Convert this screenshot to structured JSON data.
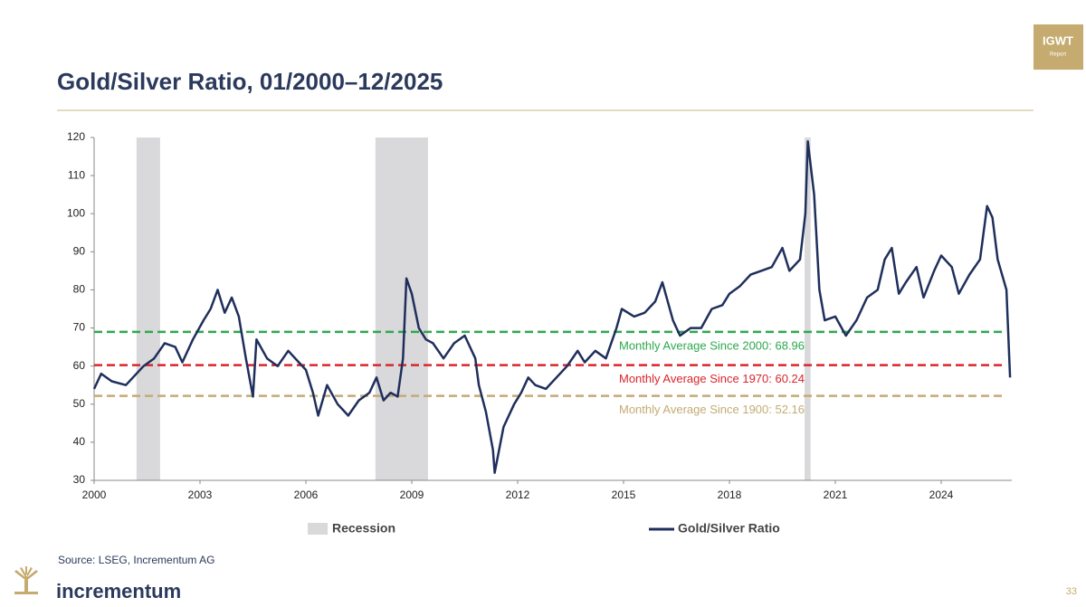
{
  "header": {
    "badge_title": "IGWT",
    "badge_subtitle": "Report"
  },
  "chart_data": {
    "type": "line",
    "title": "Gold/Silver Ratio, 01/2000–12/2025",
    "xlim": [
      2000,
      2026
    ],
    "xticks": [
      2000,
      2003,
      2006,
      2009,
      2012,
      2015,
      2018,
      2021,
      2024
    ],
    "ylim": [
      30,
      120
    ],
    "yticks": [
      30,
      40,
      50,
      60,
      70,
      80,
      90,
      100,
      110,
      120
    ],
    "grid": false,
    "recessions": {
      "name": "Recession",
      "color": "#d9d9dc",
      "ranges": [
        [
          2001.2,
          2001.87
        ],
        [
          2007.97,
          2009.46
        ],
        [
          2020.13,
          2020.3
        ]
      ]
    },
    "reference_lines": [
      {
        "label": "Monthly Average Since 2000: 68.96",
        "value": 68.96,
        "color": "#2ea84f"
      },
      {
        "label": "Monthly Average Since 1970: 60.24",
        "value": 60.24,
        "color": "#d9262b"
      },
      {
        "label": "Monthly Average Since 1900: 52.16",
        "value": 52.16,
        "color": "#c4ab74"
      }
    ],
    "x": [
      2000.0,
      2000.2,
      2000.5,
      2000.9,
      2001.1,
      2001.4,
      2001.7,
      2002.0,
      2002.3,
      2002.5,
      2002.8,
      2003.1,
      2003.3,
      2003.5,
      2003.7,
      2003.9,
      2004.1,
      2004.3,
      2004.5,
      2004.6,
      2004.9,
      2005.2,
      2005.5,
      2005.8,
      2006.0,
      2006.2,
      2006.35,
      2006.6,
      2006.9,
      2007.2,
      2007.5,
      2007.8,
      2008.0,
      2008.2,
      2008.4,
      2008.6,
      2008.75,
      2008.85,
      2009.0,
      2009.2,
      2009.4,
      2009.6,
      2009.9,
      2010.2,
      2010.5,
      2010.8,
      2010.9,
      2011.1,
      2011.3,
      2011.35,
      2011.6,
      2011.9,
      2012.1,
      2012.3,
      2012.5,
      2012.8,
      2013.1,
      2013.4,
      2013.7,
      2013.9,
      2014.2,
      2014.5,
      2014.8,
      2014.95,
      2015.3,
      2015.6,
      2015.9,
      2016.1,
      2016.4,
      2016.6,
      2016.9,
      2017.2,
      2017.5,
      2017.8,
      2018.0,
      2018.3,
      2018.6,
      2018.9,
      2019.2,
      2019.5,
      2019.7,
      2020.0,
      2020.15,
      2020.22,
      2020.4,
      2020.55,
      2020.7,
      2021.0,
      2021.3,
      2021.6,
      2021.9,
      2022.2,
      2022.4,
      2022.6,
      2022.8,
      2023.0,
      2023.3,
      2023.5,
      2023.8,
      2024.0,
      2024.3,
      2024.5,
      2024.8,
      2025.1,
      2025.3,
      2025.45,
      2025.6,
      2025.85,
      2025.95
    ],
    "series": [
      {
        "name": "Gold/Silver Ratio",
        "color": "#1f2f5c",
        "values": [
          54,
          58,
          56,
          55,
          57,
          60,
          62,
          66,
          65,
          61,
          67,
          72,
          75,
          80,
          74,
          78,
          73,
          62,
          52,
          67,
          62,
          60,
          64,
          61,
          59,
          53,
          47,
          55,
          50,
          47,
          51,
          53,
          57,
          51,
          53,
          52,
          62,
          83,
          79,
          70,
          67,
          66,
          62,
          66,
          68,
          62,
          55,
          48,
          38,
          32,
          44,
          50,
          53,
          57,
          55,
          54,
          57,
          60,
          64,
          61,
          64,
          62,
          70,
          75,
          73,
          74,
          77,
          82,
          72,
          68,
          70,
          70,
          75,
          76,
          79,
          81,
          84,
          85,
          86,
          91,
          85,
          88,
          100,
          119,
          105,
          80,
          72,
          73,
          68,
          72,
          78,
          80,
          88,
          91,
          79,
          82,
          86,
          78,
          85,
          89,
          86,
          79,
          84,
          88,
          102,
          99,
          88,
          80,
          57
        ]
      }
    ]
  },
  "footer": {
    "source": "Source: LSEG, Incrementum AG",
    "logo": "incrementum",
    "page": "33"
  }
}
